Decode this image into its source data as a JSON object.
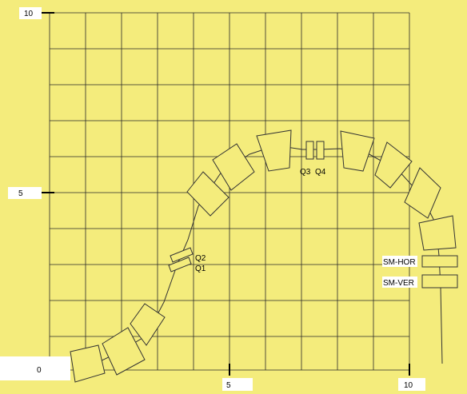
{
  "colors": {
    "background": "#f4ec7c",
    "grid": "#2a2a2a",
    "outline": "#333333",
    "label_box": "#ffffff"
  },
  "axes": {
    "x_ticks": [
      "5",
      "10"
    ],
    "y_ticks": [
      "0",
      "5",
      "10"
    ]
  },
  "elements": {
    "q1": "Q1",
    "q2": "Q2",
    "q3": "Q3",
    "q4": "Q4",
    "sm_hor": "SM-HOR",
    "sm_ver": "SM-VER"
  }
}
